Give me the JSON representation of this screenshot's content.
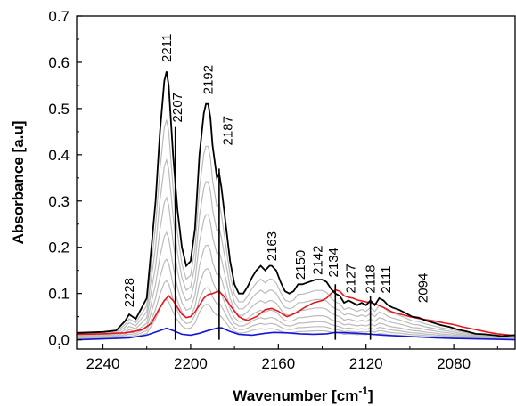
{
  "chart_data": {
    "type": "line",
    "xlabel": "Wavenumber [cm",
    "xlabel_sup": "-1",
    "xlabel_end": "]",
    "ylabel": "Absorbance [a.u]",
    "xlim": [
      2252,
      2052
    ],
    "ylim": [
      -0.02,
      0.7
    ],
    "x_reversed": true,
    "grid": false,
    "legend": "none",
    "x_ticks": [
      2240,
      2200,
      2160,
      2120,
      2080
    ],
    "x_tick_labels": [
      "2240",
      "2200",
      "2160",
      "2120",
      "2080"
    ],
    "y_ticks": [
      0.0,
      0.1,
      0.2,
      0.3,
      0.4,
      0.5,
      0.6,
      0.7
    ],
    "y_tick_labels": [
      "0.0",
      "0.1",
      "0.2",
      "0.3",
      "0.4",
      "0.5",
      "0.6",
      "0.7"
    ],
    "colors": {
      "top": "#000000",
      "intermediate": "#bbbbbb",
      "red": "#e8161c",
      "blue": "#1515d6"
    },
    "series": [
      {
        "role": "top",
        "x": [
          2252,
          2240,
          2234,
          2230,
          2228,
          2225,
          2220,
          2216,
          2214,
          2212,
          2211,
          2210,
          2208,
          2206,
          2204,
          2202,
          2200,
          2198,
          2196,
          2194,
          2193,
          2192,
          2191,
          2190,
          2188,
          2187,
          2186,
          2184,
          2182,
          2180,
          2178,
          2176,
          2174,
          2172,
          2170,
          2168,
          2166,
          2164,
          2163,
          2161,
          2159,
          2157,
          2155,
          2153,
          2151,
          2149,
          2146,
          2143,
          2140,
          2138,
          2136,
          2134,
          2132,
          2130,
          2128,
          2126,
          2124,
          2122,
          2120,
          2118,
          2116,
          2114,
          2112,
          2110,
          2108,
          2105,
          2102,
          2099,
          2096,
          2093,
          2090,
          2086,
          2082,
          2078,
          2074,
          2070,
          2066,
          2062,
          2058,
          2052
        ],
        "y": [
          0.015,
          0.017,
          0.02,
          0.04,
          0.055,
          0.045,
          0.09,
          0.3,
          0.45,
          0.56,
          0.58,
          0.55,
          0.4,
          0.28,
          0.2,
          0.16,
          0.17,
          0.24,
          0.4,
          0.49,
          0.51,
          0.51,
          0.48,
          0.42,
          0.35,
          0.36,
          0.33,
          0.25,
          0.17,
          0.12,
          0.1,
          0.1,
          0.115,
          0.135,
          0.15,
          0.16,
          0.15,
          0.16,
          0.16,
          0.15,
          0.125,
          0.105,
          0.1,
          0.105,
          0.12,
          0.12,
          0.125,
          0.13,
          0.13,
          0.125,
          0.11,
          0.1,
          0.095,
          0.08,
          0.085,
          0.08,
          0.075,
          0.08,
          0.075,
          0.085,
          0.075,
          0.09,
          0.085,
          0.075,
          0.07,
          0.065,
          0.058,
          0.05,
          0.048,
          0.042,
          0.038,
          0.032,
          0.028,
          0.022,
          0.018,
          0.013,
          0.012,
          0.01,
          0.008,
          0.01
        ]
      },
      {
        "role": "red",
        "x": [
          2252,
          2240,
          2230,
          2226,
          2222,
          2218,
          2214,
          2212,
          2210,
          2208,
          2206,
          2204,
          2202,
          2200,
          2198,
          2196,
          2194,
          2192,
          2190,
          2188,
          2187,
          2185,
          2182,
          2180,
          2178,
          2176,
          2174,
          2170,
          2166,
          2163,
          2160,
          2158,
          2156,
          2152,
          2148,
          2144,
          2140,
          2138,
          2136,
          2134,
          2132,
          2130,
          2128,
          2126,
          2124,
          2120,
          2116,
          2112,
          2108,
          2104,
          2100,
          2096,
          2092,
          2088,
          2084,
          2080,
          2076,
          2072,
          2068,
          2064,
          2060,
          2052
        ],
        "y": [
          0.012,
          0.013,
          0.015,
          0.018,
          0.022,
          0.035,
          0.07,
          0.085,
          0.095,
          0.085,
          0.07,
          0.055,
          0.048,
          0.05,
          0.06,
          0.075,
          0.09,
          0.098,
          0.1,
          0.104,
          0.104,
          0.095,
          0.075,
          0.062,
          0.05,
          0.045,
          0.042,
          0.05,
          0.065,
          0.068,
          0.062,
          0.055,
          0.05,
          0.058,
          0.07,
          0.08,
          0.085,
          0.09,
          0.1,
          0.108,
          0.105,
          0.095,
          0.092,
          0.09,
          0.086,
          0.082,
          0.078,
          0.07,
          0.06,
          0.055,
          0.05,
          0.046,
          0.043,
          0.04,
          0.036,
          0.033,
          0.028,
          0.024,
          0.02,
          0.016,
          0.013,
          0.009
        ]
      },
      {
        "role": "blue",
        "x": [
          2252,
          2240,
          2228,
          2220,
          2214,
          2211,
          2208,
          2204,
          2200,
          2196,
          2192,
          2188,
          2186,
          2182,
          2178,
          2172,
          2166,
          2162,
          2156,
          2150,
          2144,
          2138,
          2134,
          2128,
          2120,
          2112,
          2104,
          2096,
          2088,
          2080,
          2070,
          2060,
          2052
        ],
        "y": [
          0.0,
          0.002,
          0.004,
          0.01,
          0.02,
          0.025,
          0.02,
          0.012,
          0.01,
          0.014,
          0.02,
          0.025,
          0.026,
          0.018,
          0.012,
          0.01,
          0.014,
          0.016,
          0.015,
          0.013,
          0.012,
          0.013,
          0.016,
          0.015,
          0.013,
          0.01,
          0.008,
          0.006,
          0.004,
          0.003,
          0.002,
          0.001,
          0.0
        ]
      }
    ],
    "intermediate_scales": [
      0.82,
      0.67,
      0.53,
      0.4,
      0.3,
      0.22,
      0.15
    ],
    "peak_labels": [
      {
        "text": "2228",
        "x": 2228,
        "y": 0.07
      },
      {
        "text": "2211",
        "x": 2211,
        "y": 0.6
      },
      {
        "text": "2207",
        "x": 2206,
        "y": 0.47
      },
      {
        "text": "2192",
        "x": 2192,
        "y": 0.53
      },
      {
        "text": "2187",
        "x": 2183,
        "y": 0.42
      },
      {
        "text": "2163",
        "x": 2163,
        "y": 0.17
      },
      {
        "text": "2150",
        "x": 2150,
        "y": 0.13
      },
      {
        "text": "2142",
        "x": 2142,
        "y": 0.14
      },
      {
        "text": "2134",
        "x": 2135,
        "y": 0.135
      },
      {
        "text": "2127",
        "x": 2127,
        "y": 0.1
      },
      {
        "text": "2118",
        "x": 2118,
        "y": 0.1
      },
      {
        "text": "2111",
        "x": 2111,
        "y": 0.1
      },
      {
        "text": "2094",
        "x": 2094,
        "y": 0.08
      }
    ],
    "marker_lines": [
      {
        "x": 2207,
        "y_bottom": 0.0,
        "y_top": 0.46
      },
      {
        "x": 2187,
        "y_bottom": 0.0,
        "y_top": 0.37
      },
      {
        "x": 2134,
        "y_bottom": 0.0,
        "y_top": 0.12
      },
      {
        "x": 2118,
        "y_bottom": 0.0,
        "y_top": 0.095
      }
    ]
  }
}
